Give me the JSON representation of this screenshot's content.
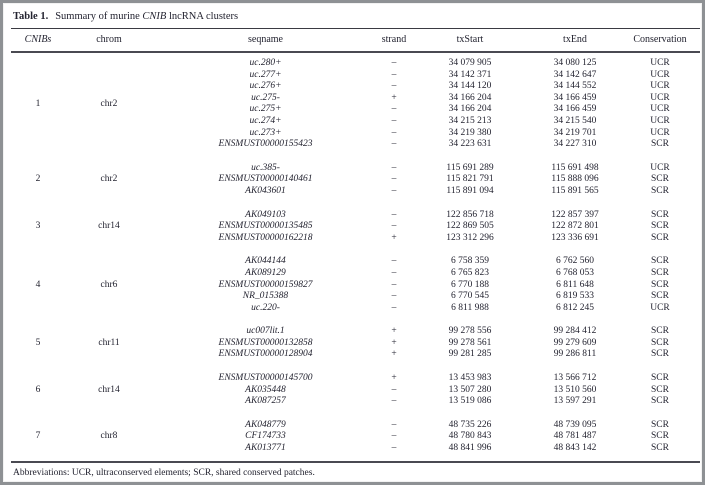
{
  "paper": {
    "title": {
      "label": "Table 1.",
      "before_italic": "Summary of murine ",
      "italic_term": "CNIB",
      "after_italic": " lncRNA clusters"
    },
    "columns": [
      "CNIBs",
      "chrom",
      "seqname",
      "strand",
      "txStart",
      "txEnd",
      "Conservation"
    ],
    "clusters": [
      {
        "id": "1",
        "chrom": "chr2",
        "rows": [
          {
            "seqname": "uc.280+",
            "strand": "–",
            "txStart": "34 079 905",
            "txEnd": "34 080 125",
            "conservation": "UCR"
          },
          {
            "seqname": "uc.277+",
            "strand": "–",
            "txStart": "34 142 371",
            "txEnd": "34 142 647",
            "conservation": "UCR"
          },
          {
            "seqname": "uc.276+",
            "strand": "–",
            "txStart": "34 144 120",
            "txEnd": "34 144 552",
            "conservation": "UCR"
          },
          {
            "seqname": "uc.275-",
            "strand": "+",
            "txStart": "34 166 204",
            "txEnd": "34 166 459",
            "conservation": "UCR"
          },
          {
            "seqname": "uc.275+",
            "strand": "–",
            "txStart": "34 166 204",
            "txEnd": "34 166 459",
            "conservation": "UCR"
          },
          {
            "seqname": "uc.274+",
            "strand": "–",
            "txStart": "34 215 213",
            "txEnd": "34 215 540",
            "conservation": "UCR"
          },
          {
            "seqname": "uc.273+",
            "strand": "–",
            "txStart": "34 219 380",
            "txEnd": "34 219 701",
            "conservation": "UCR"
          },
          {
            "seqname": "ENSMUST00000155423",
            "strand": "–",
            "txStart": "34 223 631",
            "txEnd": "34 227 310",
            "conservation": "SCR"
          }
        ]
      },
      {
        "id": "2",
        "chrom": "chr2",
        "rows": [
          {
            "seqname": "uc.385-",
            "strand": "–",
            "txStart": "115 691 289",
            "txEnd": "115 691 498",
            "conservation": "UCR"
          },
          {
            "seqname": "ENSMUST00000140461",
            "strand": "–",
            "txStart": "115 821 791",
            "txEnd": "115 888 096",
            "conservation": "SCR"
          },
          {
            "seqname": "AK043601",
            "strand": "–",
            "txStart": "115 891 094",
            "txEnd": "115 891 565",
            "conservation": "SCR"
          }
        ]
      },
      {
        "id": "3",
        "chrom": "chr14",
        "rows": [
          {
            "seqname": "AK049103",
            "strand": "–",
            "txStart": "122 856 718",
            "txEnd": "122 857 397",
            "conservation": "SCR"
          },
          {
            "seqname": "ENSMUST00000135485",
            "strand": "–",
            "txStart": "122 869 505",
            "txEnd": "122 872 801",
            "conservation": "SCR"
          },
          {
            "seqname": "ENSMUST00000162218",
            "strand": "+",
            "txStart": "123 312 296",
            "txEnd": "123 336 691",
            "conservation": "SCR"
          }
        ]
      },
      {
        "id": "4",
        "chrom": "chr6",
        "rows": [
          {
            "seqname": "AK044144",
            "strand": "–",
            "txStart": "6 758 359",
            "txEnd": "6 762 560",
            "conservation": "SCR"
          },
          {
            "seqname": "AK089129",
            "strand": "–",
            "txStart": "6 765 823",
            "txEnd": "6 768 053",
            "conservation": "SCR"
          },
          {
            "seqname": "ENSMUST00000159827",
            "strand": "–",
            "txStart": "6 770 188",
            "txEnd": "6 811 648",
            "conservation": "SCR"
          },
          {
            "seqname": "NR_015388",
            "strand": "–",
            "txStart": "6 770 545",
            "txEnd": "6 819 533",
            "conservation": "SCR"
          },
          {
            "seqname": "uc.220-",
            "strand": "–",
            "txStart": "6 811 988",
            "txEnd": "6 812 245",
            "conservation": "UCR"
          }
        ]
      },
      {
        "id": "5",
        "chrom": "chr11",
        "rows": [
          {
            "seqname": "uc007lit.1",
            "strand": "+",
            "txStart": "99 278 556",
            "txEnd": "99 284 412",
            "conservation": "SCR"
          },
          {
            "seqname": "ENSMUST00000132858",
            "strand": "+",
            "txStart": "99 278 561",
            "txEnd": "99 279 609",
            "conservation": "SCR"
          },
          {
            "seqname": "ENSMUST00000128904",
            "strand": "+",
            "txStart": "99 281 285",
            "txEnd": "99 286 811",
            "conservation": "SCR"
          }
        ]
      },
      {
        "id": "6",
        "chrom": "chr14",
        "rows": [
          {
            "seqname": "ENSMUST00000145700",
            "strand": "+",
            "txStart": "13 453 983",
            "txEnd": "13 566 712",
            "conservation": "SCR"
          },
          {
            "seqname": "AK035448",
            "strand": "–",
            "txStart": "13 507 280",
            "txEnd": "13 510 560",
            "conservation": "SCR"
          },
          {
            "seqname": "AK087257",
            "strand": "–",
            "txStart": "13 519 086",
            "txEnd": "13 597 291",
            "conservation": "SCR"
          }
        ]
      },
      {
        "id": "7",
        "chrom": "chr8",
        "rows": [
          {
            "seqname": "AK048779",
            "strand": "–",
            "txStart": "48 735 226",
            "txEnd": "48 739 095",
            "conservation": "SCR"
          },
          {
            "seqname": "CF174733",
            "strand": "–",
            "txStart": "48 780 843",
            "txEnd": "48 781 487",
            "conservation": "SCR"
          },
          {
            "seqname": "AK013771",
            "strand": "–",
            "txStart": "48 841 996",
            "txEnd": "48 843 142",
            "conservation": "SCR"
          }
        ]
      }
    ],
    "footnote": "Abbreviations: UCR, ultraconserved elements; SCR, shared conserved patches.",
    "colors": {
      "frame": "#8e9194",
      "text": "#232330",
      "rule": "#4a4a52"
    }
  }
}
